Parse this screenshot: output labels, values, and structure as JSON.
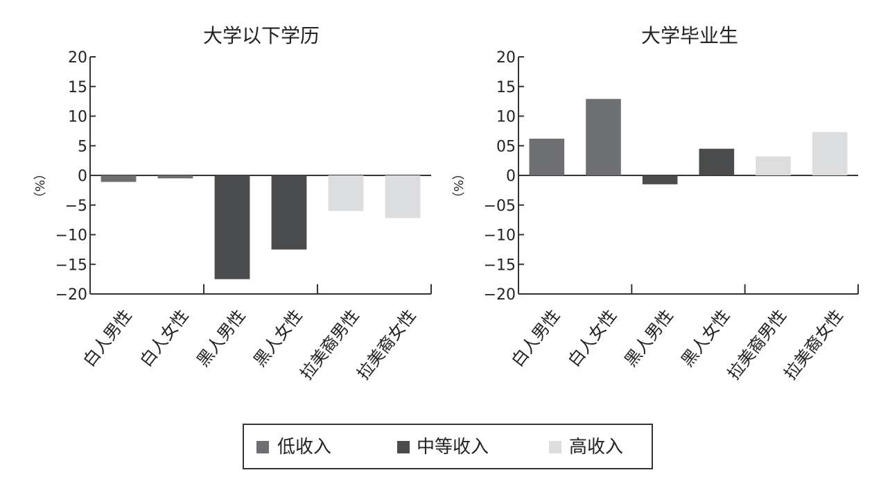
{
  "legend": {
    "items": [
      {
        "label": "低收入",
        "color": "#6e6f72"
      },
      {
        "label": "中等收入",
        "color": "#4a4b4d"
      },
      {
        "label": "高收入",
        "color": "#dcdddf"
      }
    ]
  },
  "chart_data": [
    {
      "type": "bar",
      "title": "大学以下学历",
      "ylabel": "（%）",
      "ylim": [
        -20,
        20
      ],
      "yticks": [
        "20",
        "15",
        "10",
        "5",
        "0",
        "-5",
        "-10",
        "-15",
        "-20"
      ],
      "categories": [
        "白人男性",
        "白人女性",
        "黑人男性",
        "黑人女性",
        "拉美裔男性",
        "拉美裔女性"
      ],
      "values": [
        -1.1,
        -0.5,
        -17.5,
        -12.5,
        -6.0,
        -7.2
      ],
      "groups": [
        "低收入",
        "低收入",
        "中等收入",
        "中等收入",
        "高收入",
        "高收入"
      ]
    },
    {
      "type": "bar",
      "title": "大学毕业生",
      "ylabel": "（%）",
      "ylim": [
        -20,
        20
      ],
      "yticks": [
        "20",
        "15",
        "10",
        "05",
        "0",
        "-05",
        "-10",
        "-15",
        "-20"
      ],
      "categories": [
        "白人男性",
        "白人女性",
        "黑人男性",
        "黑人女性",
        "拉美裔男性",
        "拉美裔女性"
      ],
      "values": [
        6.2,
        12.9,
        -1.5,
        4.5,
        3.2,
        7.3
      ],
      "groups": [
        "低收入",
        "低收入",
        "中等收入",
        "中等收入",
        "高收入",
        "高收入"
      ]
    }
  ]
}
